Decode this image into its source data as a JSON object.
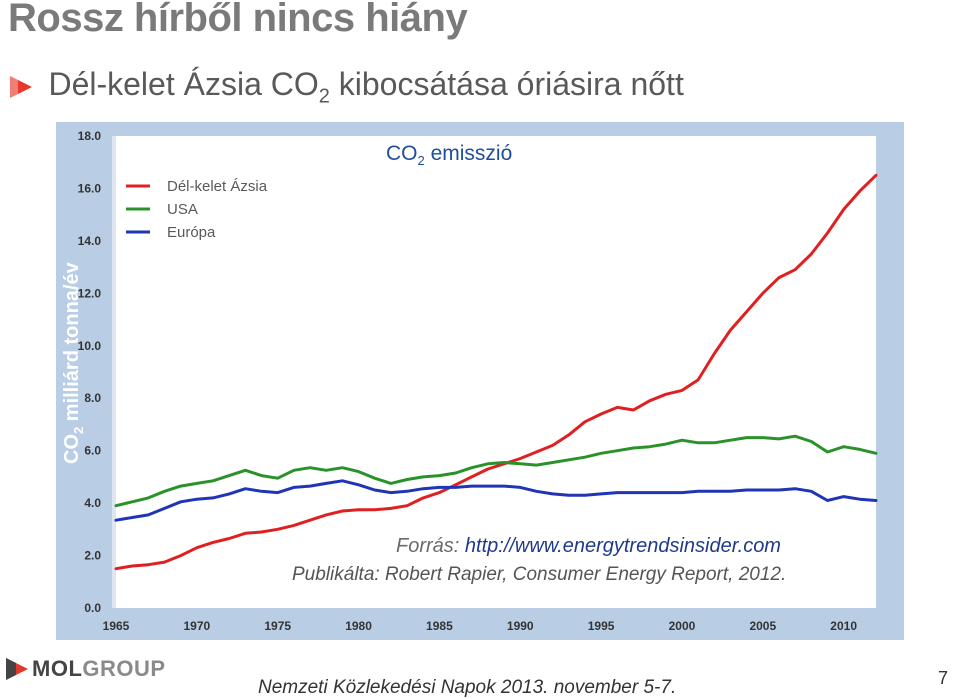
{
  "slide": {
    "title": "Rossz hírből nincs hiány",
    "subtitle_before": "Dél-kelet Ázsia CO",
    "subtitle_sub": "2",
    "subtitle_after": " kibocsátása óriásira nőtt",
    "bullet_icon": "triangle-bullet-icon",
    "bullet_color": "#e8392a"
  },
  "chart_data": {
    "type": "line",
    "title_main": "CO",
    "title_sub": "2",
    "title_rest": " emisszió",
    "ylabel_main": "CO",
    "ylabel_sub": "2",
    "ylabel_rest": " milliárd tonna/év",
    "xlabel": "",
    "ylim": [
      0,
      18
    ],
    "xlim": [
      1965,
      2012
    ],
    "grid": false,
    "legend_position": "top-left",
    "y_ticks": [
      "0.0",
      "2.0",
      "4.0",
      "6.0",
      "8.0",
      "10.0",
      "12.0",
      "14.0",
      "16.0",
      "18.0"
    ],
    "x_ticks": [
      "1965",
      "1970",
      "1975",
      "1980",
      "1985",
      "1990",
      "1995",
      "2000",
      "2005",
      "2010"
    ],
    "source_label": "Forrás: ",
    "source_url": "http://www.energytrendsinsider.com",
    "published_by": "Publikálta: Robert Rapier, Consumer Energy Report, 2012.",
    "panel_color": "#b9cde5",
    "plot_color": "#ffffff",
    "ylabel_color": "#ffffff",
    "series": [
      {
        "name": "Dél-kelet Ázsia",
        "color": "#e02020",
        "x": [
          1965,
          1966,
          1967,
          1968,
          1969,
          1970,
          1971,
          1972,
          1973,
          1974,
          1975,
          1976,
          1977,
          1978,
          1979,
          1980,
          1981,
          1982,
          1983,
          1984,
          1985,
          1986,
          1987,
          1988,
          1989,
          1990,
          1991,
          1992,
          1993,
          1994,
          1995,
          1996,
          1997,
          1998,
          1999,
          2000,
          2001,
          2002,
          2003,
          2004,
          2005,
          2006,
          2007,
          2008,
          2009,
          2010,
          2011,
          2012
        ],
        "y": [
          1.5,
          1.6,
          1.65,
          1.75,
          2.0,
          2.3,
          2.5,
          2.65,
          2.85,
          2.9,
          3.0,
          3.15,
          3.35,
          3.55,
          3.7,
          3.75,
          3.75,
          3.8,
          3.9,
          4.2,
          4.4,
          4.7,
          5.0,
          5.3,
          5.5,
          5.7,
          5.95,
          6.2,
          6.6,
          7.1,
          7.4,
          7.65,
          7.55,
          7.9,
          8.15,
          8.3,
          8.7,
          9.7,
          10.6,
          11.3,
          12.0,
          12.6,
          12.9,
          13.5,
          14.3,
          15.2,
          15.9,
          16.5
        ]
      },
      {
        "name": "USA",
        "color": "#2a922a",
        "x": [
          1965,
          1966,
          1967,
          1968,
          1969,
          1970,
          1971,
          1972,
          1973,
          1974,
          1975,
          1976,
          1977,
          1978,
          1979,
          1980,
          1981,
          1982,
          1983,
          1984,
          1985,
          1986,
          1987,
          1988,
          1989,
          1990,
          1991,
          1992,
          1993,
          1994,
          1995,
          1996,
          1997,
          1998,
          1999,
          2000,
          2001,
          2002,
          2003,
          2004,
          2005,
          2006,
          2007,
          2008,
          2009,
          2010,
          2011,
          2012
        ],
        "y": [
          3.9,
          4.05,
          4.2,
          4.45,
          4.65,
          4.75,
          4.85,
          5.05,
          5.25,
          5.05,
          4.95,
          5.25,
          5.35,
          5.25,
          5.35,
          5.2,
          4.95,
          4.75,
          4.9,
          5.0,
          5.05,
          5.15,
          5.35,
          5.5,
          5.55,
          5.5,
          5.45,
          5.55,
          5.65,
          5.75,
          5.9,
          6.0,
          6.1,
          6.15,
          6.25,
          6.4,
          6.3,
          6.3,
          6.4,
          6.5,
          6.5,
          6.45,
          6.55,
          6.35,
          5.95,
          6.15,
          6.05,
          5.9
        ]
      },
      {
        "name": "Európa",
        "color": "#1f35b5",
        "x": [
          1965,
          1966,
          1967,
          1968,
          1969,
          1970,
          1971,
          1972,
          1973,
          1974,
          1975,
          1976,
          1977,
          1978,
          1979,
          1980,
          1981,
          1982,
          1983,
          1984,
          1985,
          1986,
          1987,
          1988,
          1989,
          1990,
          1991,
          1992,
          1993,
          1994,
          1995,
          1996,
          1997,
          1998,
          1999,
          2000,
          2001,
          2002,
          2003,
          2004,
          2005,
          2006,
          2007,
          2008,
          2009,
          2010,
          2011,
          2012
        ],
        "y": [
          3.35,
          3.45,
          3.55,
          3.8,
          4.05,
          4.15,
          4.2,
          4.35,
          4.55,
          4.45,
          4.4,
          4.6,
          4.65,
          4.75,
          4.85,
          4.7,
          4.5,
          4.4,
          4.45,
          4.55,
          4.6,
          4.6,
          4.65,
          4.65,
          4.65,
          4.6,
          4.45,
          4.35,
          4.3,
          4.3,
          4.35,
          4.4,
          4.4,
          4.4,
          4.4,
          4.4,
          4.45,
          4.45,
          4.45,
          4.5,
          4.5,
          4.5,
          4.55,
          4.45,
          4.1,
          4.25,
          4.15,
          4.1
        ]
      }
    ]
  },
  "logo": {
    "icon": "mol-group-logo-icon",
    "mol": "MOL",
    "group": "GROUP"
  },
  "footer": {
    "text": "Nemzeti Közlekedési Napok 2013. november 5-7.",
    "page": "7"
  }
}
